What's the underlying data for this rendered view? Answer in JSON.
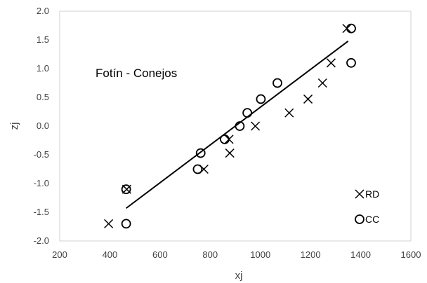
{
  "chart_data": {
    "type": "scatter",
    "annotation": "Fotín - Conejos",
    "xlabel": "xj",
    "ylabel": "zj",
    "xlim": [
      200,
      1600
    ],
    "ylim": [
      -2.0,
      2.0
    ],
    "x_ticks": [
      "200",
      "400",
      "600",
      "800",
      "1000",
      "1200",
      "1400",
      "1600"
    ],
    "y_ticks": [
      "2.0",
      "1.5",
      "1.0",
      "0.5",
      "0.0",
      "-0.5",
      "-1.0",
      "-1.5",
      "-2.0"
    ],
    "legend_position": "bottom-right",
    "series": [
      {
        "name": "RD",
        "marker": "x",
        "color": "#000000",
        "points": [
          [
            395,
            -1.7
          ],
          [
            467,
            -1.1
          ],
          [
            775,
            -0.75
          ],
          [
            875,
            -0.23
          ],
          [
            878,
            -0.47
          ],
          [
            980,
            0.0
          ],
          [
            1115,
            0.23
          ],
          [
            1190,
            0.47
          ],
          [
            1248,
            0.75
          ],
          [
            1282,
            1.1
          ],
          [
            1345,
            1.7
          ]
        ]
      },
      {
        "name": "CC",
        "marker": "o",
        "color": "#000000",
        "points": [
          [
            465,
            -1.7
          ],
          [
            465,
            -1.1
          ],
          [
            750,
            -0.75
          ],
          [
            762,
            -0.47
          ],
          [
            858,
            -0.23
          ],
          [
            918,
            0.0
          ],
          [
            948,
            0.23
          ],
          [
            1002,
            0.47
          ],
          [
            1068,
            0.75
          ],
          [
            1362,
            1.1
          ],
          [
            1362,
            1.7
          ]
        ]
      }
    ],
    "trendline": {
      "x": [
        465,
        1350
      ],
      "y": [
        -1.43,
        1.48
      ]
    }
  }
}
